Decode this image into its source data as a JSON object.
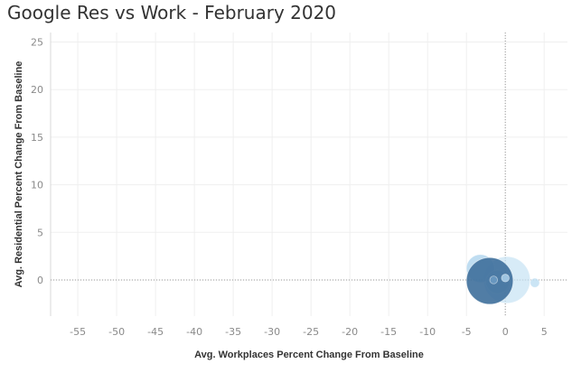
{
  "title": "Google Res vs Work - February 2020",
  "chart_data": {
    "type": "scatter",
    "title": "Google Res vs Work - February 2020",
    "xlabel": "Avg. Workplaces Percent Change From Baseline",
    "ylabel": "Avg. Residential Percent Change From Baseline",
    "xlim": [
      -58.5,
      8.0
    ],
    "ylim": [
      -3.8,
      26.0
    ],
    "xticks": [
      -55,
      -50,
      -45,
      -40,
      -35,
      -30,
      -25,
      -20,
      -15,
      -10,
      -5,
      0,
      5
    ],
    "yticks": [
      0,
      5,
      10,
      15,
      20,
      25
    ],
    "grid": true,
    "zero_lines": "dotted",
    "points": [
      {
        "x": 0.2,
        "y": 0.0,
        "size": 3.0,
        "color": "#c6e3f4",
        "opacity": 0.7
      },
      {
        "x": -3.2,
        "y": 1.2,
        "size": 1.8,
        "color": "#a9d1ec",
        "opacity": 0.75
      },
      {
        "x": -1.0,
        "y": -0.2,
        "size": 1.5,
        "color": "#b5d8ef",
        "opacity": 0.7
      },
      {
        "x": 3.8,
        "y": -0.3,
        "size": 0.6,
        "color": "#c2e0f3",
        "opacity": 0.85
      },
      {
        "x": -2.0,
        "y": -0.1,
        "size": 3.0,
        "color": "#3e6f9b",
        "opacity": 0.9
      },
      {
        "x": -1.5,
        "y": 0.0,
        "size": 0.5,
        "color": "#6f9fc6",
        "opacity": 0.8
      },
      {
        "x": 0.0,
        "y": 0.2,
        "size": 0.5,
        "color": "#a8cde8",
        "opacity": 0.9
      }
    ]
  }
}
